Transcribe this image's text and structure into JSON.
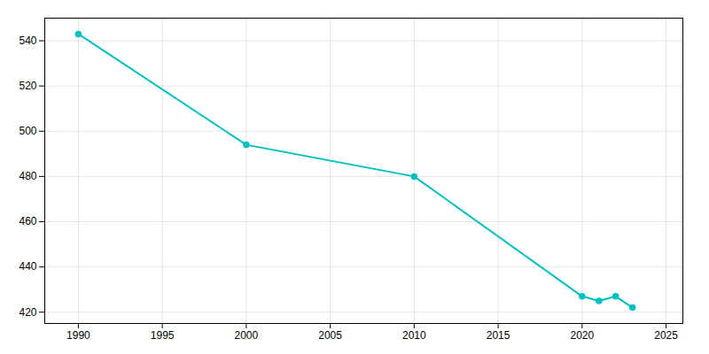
{
  "chart_data": {
    "type": "line",
    "x": [
      1990,
      2000,
      2010,
      2020,
      2021,
      2022,
      2023
    ],
    "values": [
      543,
      494,
      480,
      427,
      425,
      427,
      422
    ],
    "color": "#00BFBF",
    "marker": "circle",
    "xlim": [
      1988,
      2026
    ],
    "xticks": [
      1990,
      1995,
      2000,
      2005,
      2010,
      2015,
      2020,
      2025
    ],
    "ylim": [
      415,
      550
    ],
    "yticks": [
      420,
      440,
      460,
      480,
      500,
      520,
      540
    ],
    "grid": true
  }
}
